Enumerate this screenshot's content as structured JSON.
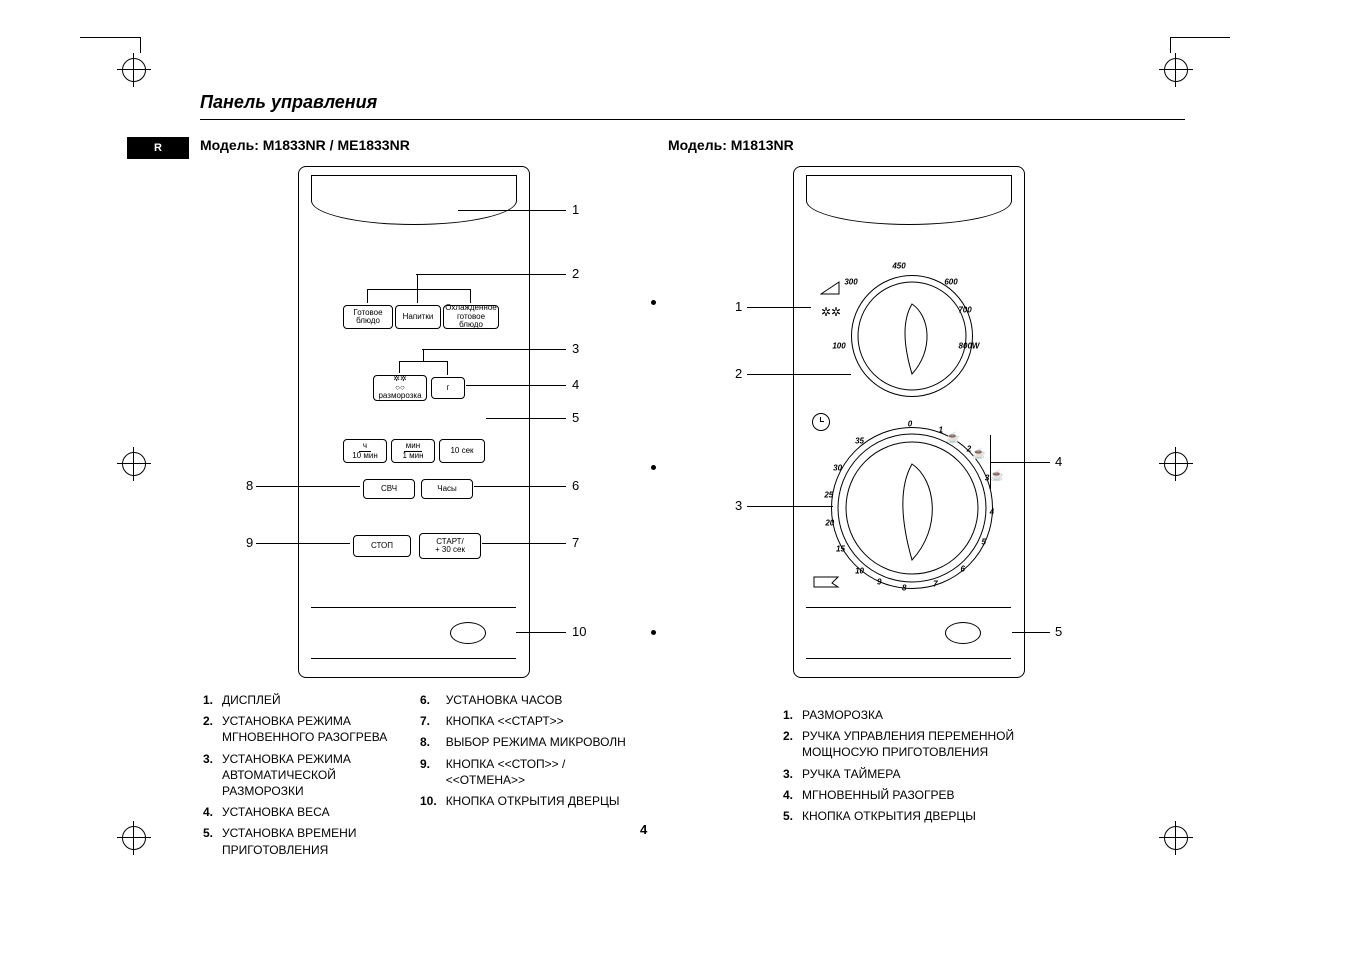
{
  "page": {
    "title": "Панель управления",
    "side_tab": "R",
    "number": "4"
  },
  "left": {
    "model_heading": "Модель: M1833NR / ME1833NR",
    "buttons": {
      "ready_dish": "Готовое\nблюдо",
      "drinks": "Напитки",
      "chilled_ready": "Охлажденное\nготовое блюдо",
      "defrost": "разморозка",
      "gram": "г",
      "h_10min": "ч\n10 мин",
      "min_1min": "мин\n1 мин",
      "sec_10": "10 сек",
      "svch": "СВЧ",
      "clock": "Часы",
      "stop": "СТОП",
      "start": "СТАРТ/\n+ 30 сек"
    },
    "callouts": [
      "1",
      "2",
      "3",
      "4",
      "5",
      "6",
      "7",
      "8",
      "9",
      "10"
    ],
    "legend_a": [
      {
        "n": "1.",
        "t": "ДИСПЛЕЙ"
      },
      {
        "n": "2.",
        "t": "УСТАНОВКА РЕЖИМА МГНОВЕННОГО РАЗОГРЕВА"
      },
      {
        "n": "3.",
        "t": "УСТАНОВКА РЕЖИМА АВТОМАТИЧЕСКОЙ РАЗМОРОЗКИ"
      },
      {
        "n": "4.",
        "t": "УСТАНОВКА ВЕСА"
      },
      {
        "n": "5.",
        "t": "УСТАНОВКА ВРЕМЕНИ ПРИГОТОВЛЕНИЯ"
      }
    ],
    "legend_b": [
      {
        "n": "6.",
        "t": "УСТАНОВКА ЧАСОВ"
      },
      {
        "n": "7.",
        "t": "КНОПКА <<СТАРТ>>"
      },
      {
        "n": "8.",
        "t": "ВЫБОР РЕЖИМА МИКРОВОЛН"
      },
      {
        "n": "9.",
        "t": "КНОПКА <<СТОП>> / <<ОТМЕНА>>"
      },
      {
        "n": "10.",
        "t": "КНОПКА ОТКРЫТИЯ  ДВЕРЦЫ"
      }
    ]
  },
  "right": {
    "model_heading": "Модель: M1813NR",
    "power_labels": [
      "100",
      "300",
      "450",
      "600",
      "700",
      "800W"
    ],
    "timer_labels": [
      "0",
      "1",
      "2",
      "3",
      "4",
      "5",
      "6",
      "7",
      "8",
      "9",
      "10",
      "15",
      "20",
      "25",
      "30",
      "35"
    ],
    "callouts": [
      "1",
      "2",
      "3",
      "4",
      "5"
    ],
    "legend": [
      {
        "n": "1.",
        "t": "РАЗМОРОЗКА"
      },
      {
        "n": "2.",
        "t": "РУЧКА УПРАВЛЕНИЯ ПЕРЕМЕННОЙ МОЩНОСУЮ ПРИГОТОВЛЕНИЯ"
      },
      {
        "n": "3.",
        "t": "РУЧКА ТАЙМЕРА"
      },
      {
        "n": "4.",
        "t": "МГНОВЕННЫЙ РАЗОГРЕВ"
      },
      {
        "n": "5.",
        "t": "КНОПКА ОТКРЫТИЯ ДВЕРЦЫ"
      }
    ]
  },
  "style": {
    "colors": {
      "fg": "#000000",
      "bg": "#ffffff"
    },
    "font_family": "Arial",
    "title_fontsize": 18,
    "heading_fontsize": 14,
    "body_fontsize": 12,
    "button_fontsize": 8
  }
}
